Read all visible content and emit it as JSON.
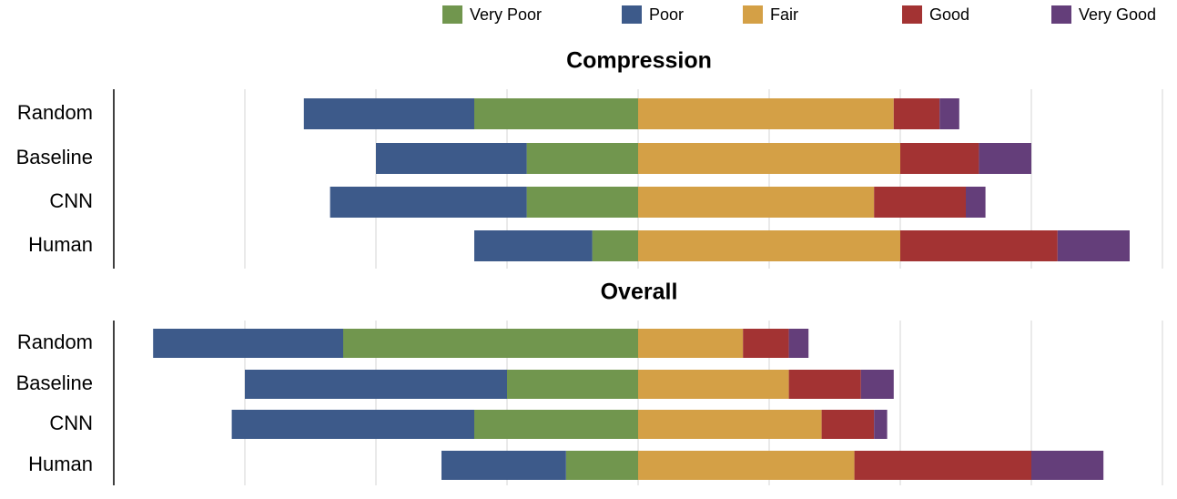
{
  "chart_data": [
    {
      "type": "bar",
      "orientation": "horizontal",
      "diverging": true,
      "title": "Compression",
      "categories": [
        "Random",
        "Baseline",
        "CNN",
        "Human"
      ],
      "xlim": [
        -80,
        80
      ],
      "xticks": [
        -60,
        -40,
        -20,
        0,
        20,
        40,
        60,
        80
      ],
      "grid": true,
      "legend": "top-right",
      "series": [
        {
          "name": "Very Poor",
          "color": "#71964e",
          "side": "left",
          "values": [
            25,
            17,
            17,
            7
          ]
        },
        {
          "name": "Poor",
          "color": "#3d5a8a",
          "side": "left",
          "values": [
            26,
            23,
            30,
            18
          ]
        },
        {
          "name": "Fair",
          "color": "#d4a046",
          "side": "right",
          "values": [
            39,
            40,
            36,
            40
          ]
        },
        {
          "name": "Good",
          "color": "#a33333",
          "side": "right",
          "values": [
            7,
            12,
            14,
            24
          ]
        },
        {
          "name": "Very Good",
          "color": "#643e7a",
          "side": "right",
          "values": [
            3,
            8,
            3,
            11
          ]
        }
      ]
    },
    {
      "type": "bar",
      "orientation": "horizontal",
      "diverging": true,
      "title": "Overall",
      "categories": [
        "Random",
        "Baseline",
        "CNN",
        "Human"
      ],
      "xlim": [
        -80,
        80
      ],
      "xticks": [
        -60,
        -40,
        -20,
        0,
        20,
        40,
        60,
        80
      ],
      "grid": true,
      "series": [
        {
          "name": "Very Poor",
          "color": "#71964e",
          "side": "left",
          "values": [
            45,
            20,
            25,
            11
          ]
        },
        {
          "name": "Poor",
          "color": "#3d5a8a",
          "side": "left",
          "values": [
            29,
            40,
            37,
            19
          ]
        },
        {
          "name": "Fair",
          "color": "#d4a046",
          "side": "right",
          "values": [
            16,
            23,
            28,
            33
          ]
        },
        {
          "name": "Good",
          "color": "#a33333",
          "side": "right",
          "values": [
            7,
            11,
            8,
            27
          ]
        },
        {
          "name": "Very Good",
          "color": "#643e7a",
          "side": "right",
          "values": [
            3,
            5,
            2,
            11
          ]
        }
      ]
    }
  ]
}
